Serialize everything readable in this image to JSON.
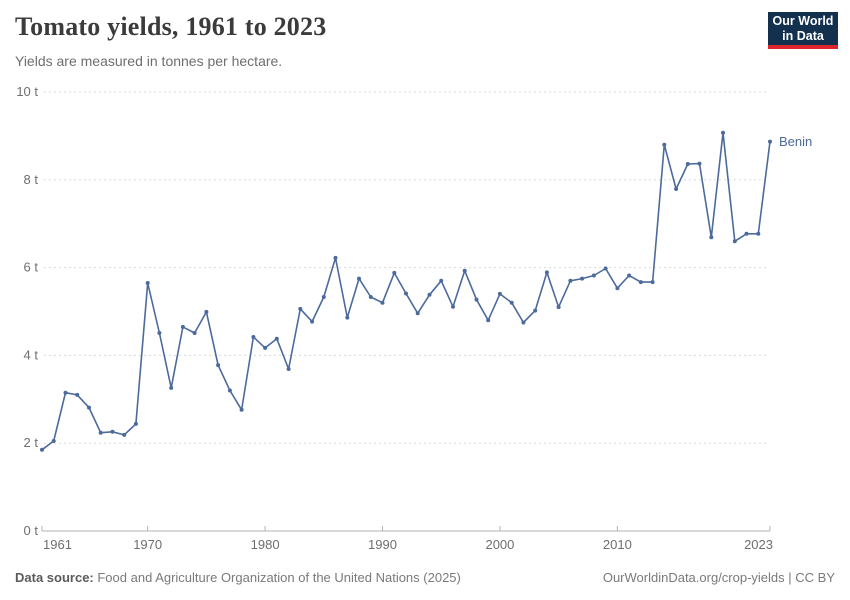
{
  "header": {
    "title": "Tomato yields, 1961 to 2023",
    "subtitle": "Yields are measured in tonnes per hectare.",
    "logo": {
      "line1": "Our World",
      "line2": "in Data",
      "bg_color": "#13304E",
      "accent_color": "#E0242B"
    }
  },
  "chart_data": {
    "type": "line",
    "title": "Tomato yields, 1961 to 2023",
    "subtitle": "Yields are measured in tonnes per hectare.",
    "unit": "tonnes per hectare",
    "xlim": [
      1961,
      2023
    ],
    "ylim": [
      0,
      10
    ],
    "x_ticks": [
      1961,
      1970,
      1980,
      1990,
      2000,
      2010,
      2023
    ],
    "y_ticks": [
      0,
      2,
      4,
      6,
      8,
      10
    ],
    "y_tick_suffix": " t",
    "grid": "horizontal-dashed",
    "grid_color": "#dadada",
    "axis_color": "#b3b3b3",
    "tick_label_color": "#6e6e6e",
    "legend_position": "end-of-line-label",
    "series": [
      {
        "name": "Benin",
        "color": "#4C6A9C",
        "x": [
          1961,
          1962,
          1963,
          1964,
          1965,
          1966,
          1967,
          1968,
          1969,
          1970,
          1971,
          1972,
          1973,
          1974,
          1975,
          1976,
          1977,
          1978,
          1979,
          1980,
          1981,
          1982,
          1983,
          1984,
          1985,
          1986,
          1987,
          1988,
          1989,
          1990,
          1991,
          1992,
          1993,
          1994,
          1995,
          1996,
          1997,
          1998,
          1999,
          2000,
          2001,
          2002,
          2003,
          2004,
          2005,
          2006,
          2007,
          2008,
          2009,
          2010,
          2011,
          2012,
          2013,
          2014,
          2015,
          2016,
          2017,
          2018,
          2019,
          2020,
          2021,
          2022,
          2023
        ],
        "values": [
          1.85,
          2.05,
          3.15,
          3.1,
          2.81,
          2.24,
          2.26,
          2.19,
          2.44,
          5.65,
          4.51,
          3.26,
          4.65,
          4.51,
          4.99,
          3.78,
          3.2,
          2.76,
          4.42,
          4.17,
          4.38,
          3.69,
          5.06,
          4.77,
          5.33,
          6.22,
          4.86,
          5.75,
          5.33,
          5.2,
          5.88,
          5.41,
          4.96,
          5.38,
          5.7,
          5.11,
          5.93,
          5.27,
          4.8,
          5.4,
          5.2,
          4.75,
          5.02,
          5.89,
          5.1,
          5.7,
          5.75,
          5.82,
          5.98,
          5.53,
          5.82,
          5.67,
          5.67,
          8.8,
          7.79,
          8.36,
          8.37,
          6.69,
          9.07,
          6.6,
          6.77,
          6.77,
          8.87
        ]
      }
    ]
  },
  "footer": {
    "source_label": "Data source:",
    "source_text": " Food and Agriculture Organization of the United Nations (2025)",
    "credit": "OurWorldinData.org/crop-yields | CC BY"
  }
}
